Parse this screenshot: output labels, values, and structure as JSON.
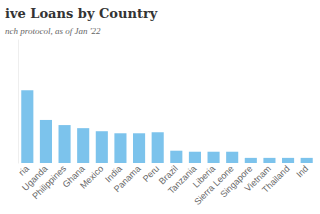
{
  "chart_data": {
    "type": "bar",
    "title": "ive Loans by Country",
    "subtitle": "nch protocol, as of Jan '22",
    "categories": [
      "ria",
      "Uganda",
      "Philippines",
      "Ghana",
      "Mexico",
      "India",
      "Panama",
      "Peru",
      "Brazil",
      "Tanzania",
      "Liberia",
      "Sierra Leone",
      "Singapore",
      "Vietnam",
      "Thailand",
      "Ind"
    ],
    "values": [
      71,
      42,
      37,
      34,
      31,
      29,
      29,
      30,
      12,
      11,
      11,
      11,
      5,
      5,
      5,
      5
    ],
    "color": "#7cc3ec",
    "ylim": [
      0,
      120
    ],
    "grid": false,
    "tick_labels": "x"
  }
}
